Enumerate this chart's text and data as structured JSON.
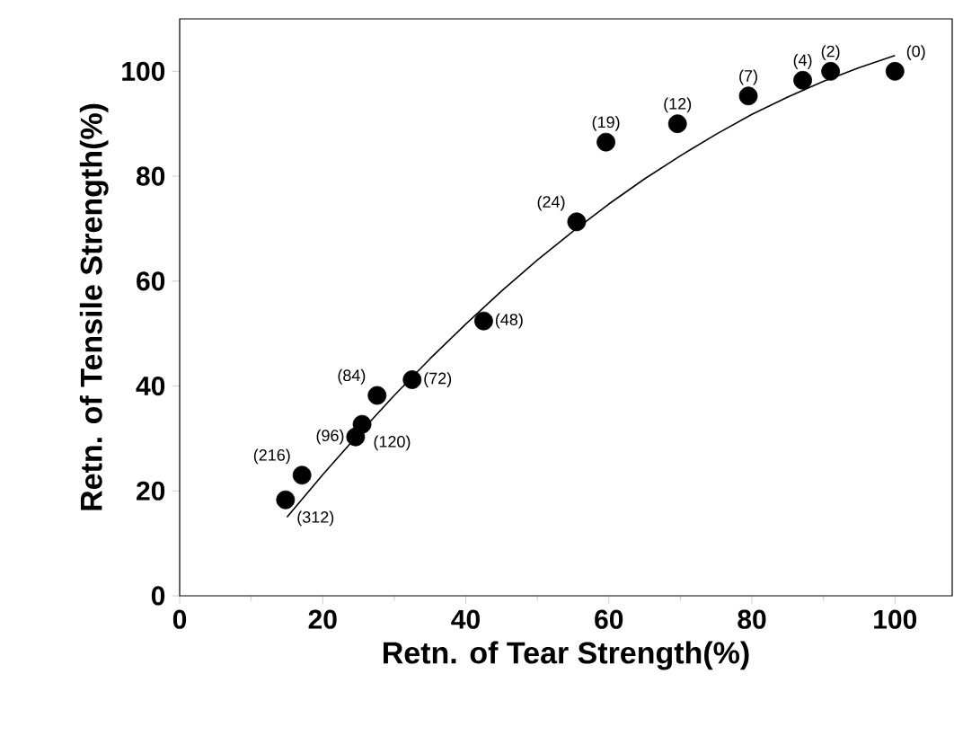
{
  "chart_data": {
    "type": "scatter",
    "xlabel": "Retn. of Tear Strength(%)",
    "ylabel": "Retn. of Tensile Strength(%)",
    "xlim": [
      0,
      108
    ],
    "ylim": [
      0,
      110
    ],
    "xticks": [
      0,
      20,
      40,
      60,
      80,
      100
    ],
    "yticks": [
      0,
      20,
      40,
      60,
      80,
      100
    ],
    "grid": false,
    "series": [
      {
        "color": "#000000",
        "marker": "circle",
        "x": [
          100,
          91,
          87.1,
          79.5,
          69.6,
          59.6,
          55.5,
          42.5,
          32.5,
          27.6,
          25.5,
          24.6,
          17.1,
          14.8
        ],
        "values": [
          100,
          100,
          98.3,
          95.3,
          90,
          86.5,
          71.3,
          52.4,
          41.2,
          38.2,
          32.7,
          30.3,
          23,
          18.3
        ]
      },
      {
        "type": "line",
        "color": "#000000",
        "marker": "none",
        "line_style": "solid",
        "x": [
          15,
          20,
          25,
          30,
          35,
          40,
          45,
          50,
          55,
          60,
          65,
          70,
          75,
          80,
          85,
          90,
          95,
          100
        ],
        "values": [
          15,
          23.1,
          30.8,
          38.2,
          45.2,
          51.8,
          58.1,
          64,
          69.5,
          74.7,
          79.5,
          83.9,
          88,
          91.8,
          95.1,
          98.1,
          100.7,
          103
        ]
      }
    ],
    "annotations": [
      {
        "text": "(0)",
        "x": 100,
        "y": 100
      },
      {
        "text": "(2)",
        "x": 91,
        "y": 100
      },
      {
        "text": "(4)",
        "x": 87.1,
        "y": 98.3
      },
      {
        "text": "(7)",
        "x": 79.5,
        "y": 95.3
      },
      {
        "text": "(12)",
        "x": 69.6,
        "y": 90
      },
      {
        "text": "(19)",
        "x": 59.6,
        "y": 86.5
      },
      {
        "text": "(24)",
        "x": 55.5,
        "y": 71.3
      },
      {
        "text": "(48)",
        "x": 42.5,
        "y": 52.4
      },
      {
        "text": "(72)",
        "x": 32.5,
        "y": 41.2
      },
      {
        "text": "(84)",
        "x": 27.6,
        "y": 38.2
      },
      {
        "text": "(120)",
        "x": 25.5,
        "y": 32.7
      },
      {
        "text": "(96)",
        "x": 24.6,
        "y": 30.3
      },
      {
        "text": "(216)",
        "x": 17.1,
        "y": 23
      },
      {
        "text": "(312)",
        "x": 14.8,
        "y": 18.3
      }
    ]
  }
}
